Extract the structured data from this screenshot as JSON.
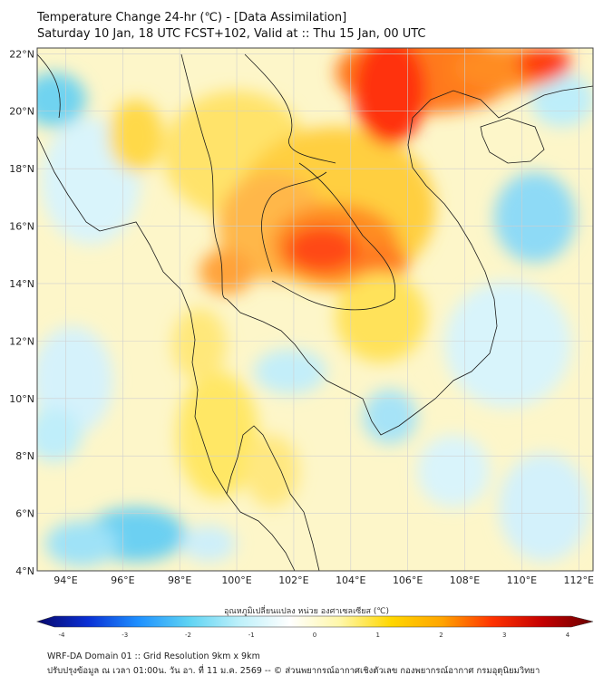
{
  "header": {
    "title": "Temperature Change 24-hr (℃) - [Data Assimilation]",
    "subtitle": "Saturday 10 Jan, 18 UTC FCST+102, Valid at :: Thu 15 Jan, 00 UTC"
  },
  "map": {
    "lat_labels": [
      "22°N",
      "20°N",
      "18°N",
      "16°N",
      "14°N",
      "12°N",
      "10°N",
      "8°N",
      "6°N",
      "4°N"
    ],
    "lon_labels": [
      "94°E",
      "96°E",
      "98°E",
      "100°E",
      "102°E",
      "104°E",
      "106°E",
      "108°E",
      "110°E",
      "112°E"
    ],
    "lat_range": [
      4,
      22.2
    ],
    "lon_range": [
      93,
      112.5
    ]
  },
  "colorbar": {
    "label": "อุณหภูมิเปลี่ยนแปลง หน่วย องศาเซลเซียส (℃)",
    "ticks": [
      "-4",
      "-3",
      "-2",
      "-1",
      "0",
      "1",
      "2",
      "3",
      "4"
    ],
    "range": [
      -4,
      4
    ],
    "colors": [
      "#08086b",
      "#0a2fd4",
      "#1e90ff",
      "#5ed3f3",
      "#bdf0fa",
      "#ffffff",
      "#fff7a8",
      "#ffd700",
      "#ffa500",
      "#ff3300",
      "#c40000",
      "#6b0000"
    ]
  },
  "footer": {
    "line1": "WRF-DA Domain 01 :: Grid Resolution 9km x 9km",
    "line2": "ปรับปรุงข้อมูล ณ เวลา 01:00น. วัน อา. ที่ 11 ม.ค. 2569 -- © ส่วนพยากรณ์อากาศเชิงตัวเลข กองพยากรณ์อากาศ กรมอุตุนิยมวิทยา"
  }
}
